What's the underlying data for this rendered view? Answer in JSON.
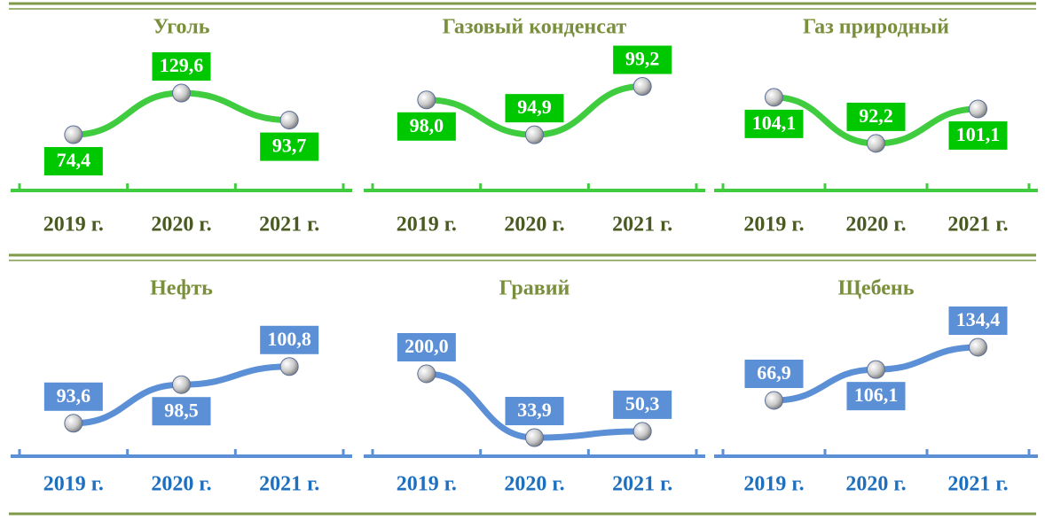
{
  "chart_data": [
    {
      "type": "line",
      "title": "Уголь",
      "categories": [
        "2019 г.",
        "2020 г.",
        "2021 г."
      ],
      "values": [
        74.4,
        129.6,
        93.7
      ],
      "value_labels": [
        "74,4",
        "129,6",
        "93,7"
      ],
      "color": "#3fcc3f",
      "ylim": [
        47.4,
        141.4
      ]
    },
    {
      "type": "line",
      "title": "Газовый конденсат",
      "categories": [
        "2019 г.",
        "2020 г.",
        "2021 г."
      ],
      "values": [
        98.0,
        94.9,
        99.2
      ],
      "value_labels": [
        "98,0",
        "94,9",
        "99,2"
      ],
      "color": "#3fcc3f",
      "ylim": [
        93.1,
        99.4
      ]
    },
    {
      "type": "line",
      "title": "Газ природный",
      "categories": [
        "2019 г.",
        "2020 г.",
        "2021 г."
      ],
      "values": [
        104.1,
        92.2,
        101.1
      ],
      "value_labels": [
        "104,1",
        "92,2",
        "101,1"
      ],
      "color": "#3fcc3f",
      "ylim": [
        89.2,
        107.5
      ]
    },
    {
      "type": "line",
      "title": "Нефть",
      "categories": [
        "2019 г.",
        "2020 г.",
        "2021 г."
      ],
      "values": [
        93.6,
        98.5,
        100.8
      ],
      "value_labels": [
        "93,6",
        "98,5",
        "100,8"
      ],
      "color": "#5b8fd6",
      "ylim": [
        91.1,
        104.6
      ]
    },
    {
      "type": "line",
      "title": "Гравий",
      "categories": [
        "2019 г.",
        "2020 г.",
        "2021 г."
      ],
      "values": [
        200.0,
        33.9,
        50.3
      ],
      "value_labels": [
        "200,0",
        "33,9",
        "50,3"
      ],
      "color": "#5b8fd6",
      "ylim": [
        20.1,
        296.9
      ]
    },
    {
      "type": "line",
      "title": "Щебень",
      "categories": [
        "2019 г.",
        "2020 г.",
        "2021 г."
      ],
      "values": [
        66.9,
        106.1,
        134.4
      ],
      "value_labels": [
        "66,9",
        "106,1",
        "134,4"
      ],
      "color": "#5b8fd6",
      "ylim": [
        12.9,
        147.9
      ]
    }
  ]
}
